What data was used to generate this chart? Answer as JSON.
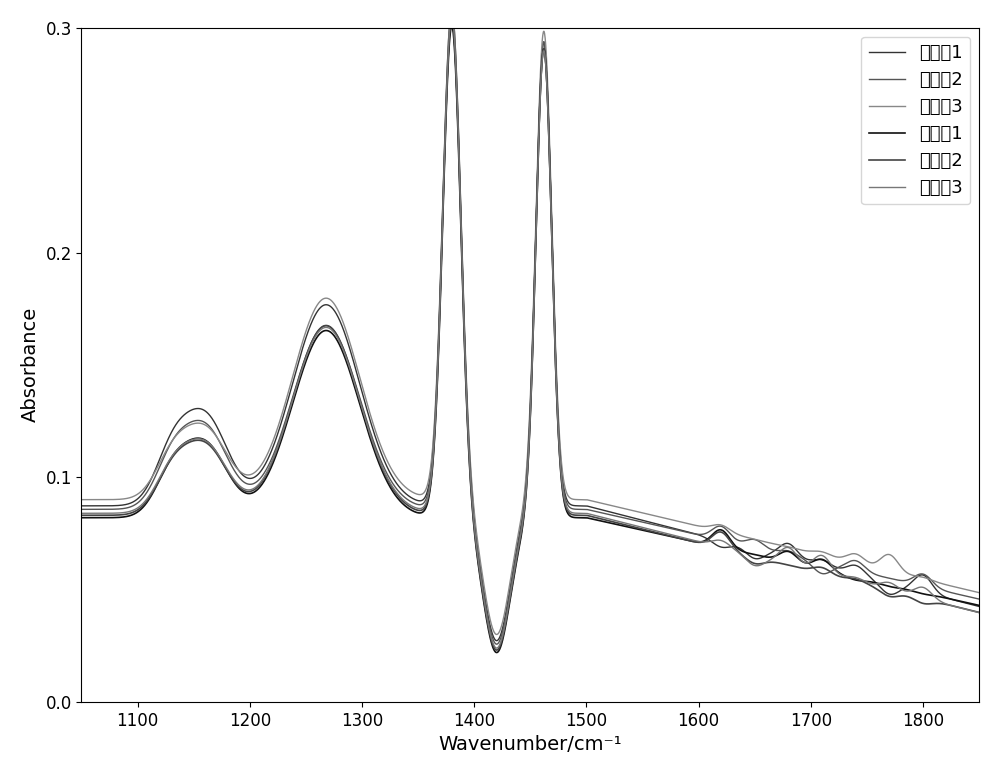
{
  "xlabel": "Wavenumber/cm⁻¹",
  "ylabel": "Absorbance",
  "xlim": [
    1050,
    1850
  ],
  "ylim": [
    0.0,
    0.3
  ],
  "xticks": [
    1100,
    1200,
    1300,
    1400,
    1500,
    1600,
    1700,
    1800
  ],
  "yticks": [
    0.0,
    0.1,
    0.2,
    0.3
  ],
  "legend_labels": [
    "运行油1",
    "运行油2",
    "运行油3",
    "老化油1",
    "老化油2",
    "老化油3"
  ],
  "line_colors": [
    "#333333",
    "#555555",
    "#888888",
    "#111111",
    "#444444",
    "#777777"
  ],
  "line_widths": [
    1.0,
    1.0,
    1.0,
    1.2,
    1.2,
    1.0
  ],
  "background_color": "#ffffff",
  "title_fontsize": 12,
  "axis_fontsize": 14,
  "legend_fontsize": 13
}
